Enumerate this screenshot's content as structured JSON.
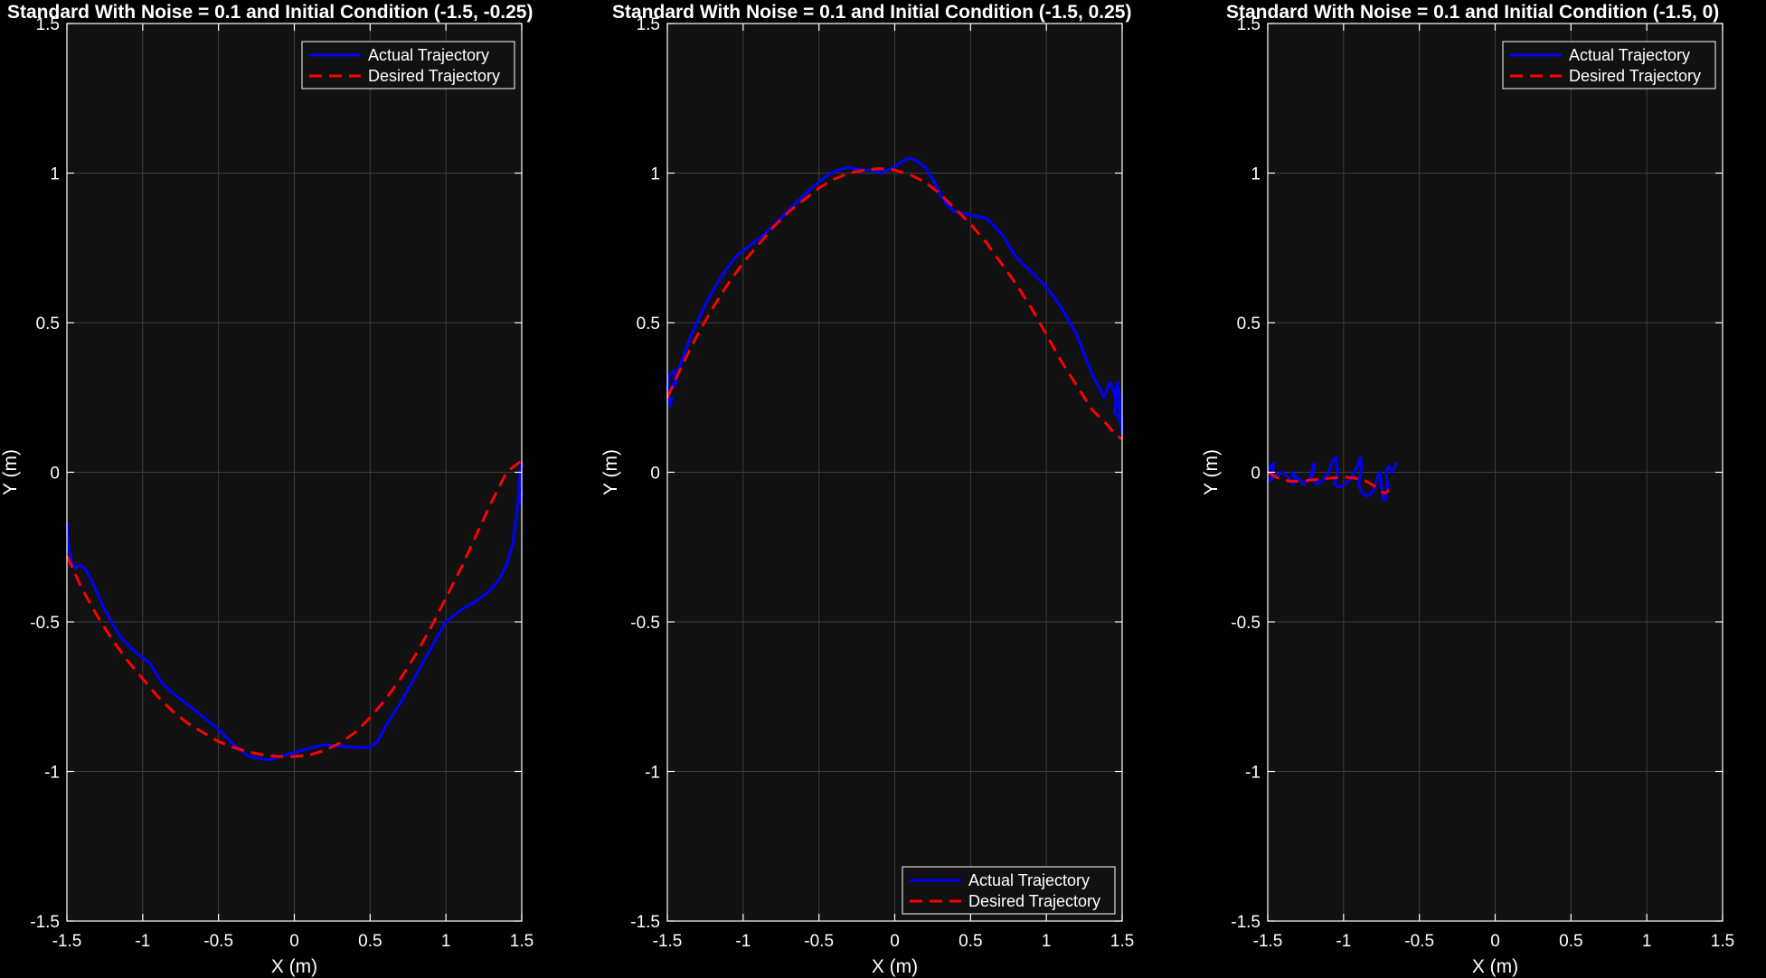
{
  "chart_data": [
    {
      "type": "line",
      "title": "Standard With Noise = 0.1 and Initial Condition (-1.5, -0.25)",
      "xlabel": "X (m)",
      "ylabel": "Y (m)",
      "xlim": [
        -1.5,
        1.5
      ],
      "ylim": [
        -1.5,
        1.5
      ],
      "xticks": [
        "-1.5",
        "-1",
        "-0.5",
        "0",
        "0.5",
        "1",
        "1.5"
      ],
      "yticks": [
        "-1.5",
        "-1",
        "-0.5",
        "0",
        "0.5",
        "1",
        "1.5"
      ],
      "grid": true,
      "background": "#111111",
      "legend_position": "top-right",
      "series": [
        {
          "name": "Actual Trajectory",
          "color": "#0000ff",
          "style": "solid",
          "x": [
            -1.5,
            -1.49,
            -1.47,
            -1.45,
            -1.42,
            -1.38,
            -1.32,
            -1.25,
            -1.15,
            -1.05,
            -0.95,
            -0.88,
            -0.8,
            -0.72,
            -0.62,
            -0.5,
            -0.4,
            -0.3,
            -0.2,
            -0.15,
            -0.1,
            -0.02,
            0.05,
            0.12,
            0.2,
            0.3,
            0.4,
            0.5,
            0.55,
            0.6,
            0.7,
            0.8,
            0.9,
            1.0,
            1.1,
            1.2,
            1.28,
            1.35,
            1.4,
            1.44,
            1.46,
            1.48,
            1.49,
            1.5,
            1.5,
            1.49,
            1.48,
            1.5,
            1.49
          ],
          "y": [
            -0.17,
            -0.25,
            -0.3,
            -0.32,
            -0.31,
            -0.32,
            -0.38,
            -0.46,
            -0.55,
            -0.6,
            -0.64,
            -0.7,
            -0.74,
            -0.77,
            -0.81,
            -0.86,
            -0.91,
            -0.95,
            -0.96,
            -0.96,
            -0.95,
            -0.94,
            -0.93,
            -0.92,
            -0.91,
            -0.915,
            -0.92,
            -0.92,
            -0.9,
            -0.85,
            -0.77,
            -0.68,
            -0.59,
            -0.5,
            -0.46,
            -0.43,
            -0.4,
            -0.36,
            -0.31,
            -0.24,
            -0.17,
            -0.08,
            -0.01,
            0.02,
            0.03,
            0.0,
            -0.05,
            -0.07,
            -0.1
          ]
        },
        {
          "name": "Desired Trajectory",
          "color": "#ff0000",
          "style": "dashed",
          "x": [
            -1.5,
            -1.4,
            -1.3,
            -1.2,
            -1.1,
            -1.0,
            -0.9,
            -0.8,
            -0.7,
            -0.6,
            -0.5,
            -0.4,
            -0.3,
            -0.2,
            -0.1,
            0.0,
            0.1,
            0.2,
            0.3,
            0.4,
            0.5,
            0.6,
            0.7,
            0.8,
            0.9,
            1.0,
            1.1,
            1.2,
            1.3,
            1.4,
            1.45,
            1.5
          ],
          "y": [
            -0.28,
            -0.39,
            -0.48,
            -0.56,
            -0.63,
            -0.69,
            -0.75,
            -0.8,
            -0.84,
            -0.87,
            -0.9,
            -0.92,
            -0.935,
            -0.945,
            -0.95,
            -0.95,
            -0.945,
            -0.93,
            -0.905,
            -0.87,
            -0.82,
            -0.76,
            -0.69,
            -0.61,
            -0.52,
            -0.42,
            -0.32,
            -0.21,
            -0.1,
            0.0,
            0.02,
            0.04
          ]
        }
      ]
    },
    {
      "type": "line",
      "title": "Standard With Noise = 0.1 and Initial Condition (-1.5, 0.25)",
      "xlabel": "X (m)",
      "ylabel": "Y (m)",
      "xlim": [
        -1.5,
        1.5
      ],
      "ylim": [
        -1.5,
        1.5
      ],
      "xticks": [
        "-1.5",
        "-1",
        "-0.5",
        "0",
        "0.5",
        "1",
        "1.5"
      ],
      "yticks": [
        "-1.5",
        "-1",
        "-0.5",
        "0",
        "0.5",
        "1",
        "1.5"
      ],
      "grid": true,
      "background": "#111111",
      "legend_position": "bottom-right",
      "series": [
        {
          "name": "Actual Trajectory",
          "color": "#0000ff",
          "style": "solid",
          "x": [
            -1.47,
            -1.48,
            -1.5,
            -1.49,
            -1.46,
            -1.44,
            -1.47,
            -1.42,
            -1.35,
            -1.25,
            -1.15,
            -1.05,
            -0.95,
            -0.85,
            -0.75,
            -0.65,
            -0.55,
            -0.45,
            -0.38,
            -0.3,
            -0.22,
            -0.15,
            -0.1,
            -0.05,
            0.0,
            0.05,
            0.1,
            0.15,
            0.2,
            0.25,
            0.3,
            0.35,
            0.4,
            0.5,
            0.6,
            0.7,
            0.8,
            0.9,
            1.0,
            1.1,
            1.2,
            1.3,
            1.38,
            1.42,
            1.44,
            1.46,
            1.47,
            1.49,
            1.5,
            1.48,
            1.45,
            1.46,
            1.48,
            1.49,
            1.5
          ],
          "y": [
            0.25,
            0.22,
            0.28,
            0.32,
            0.34,
            0.3,
            0.28,
            0.35,
            0.45,
            0.56,
            0.65,
            0.72,
            0.76,
            0.8,
            0.85,
            0.9,
            0.95,
            0.99,
            1.01,
            1.02,
            1.01,
            1.01,
            1.0,
            1.01,
            1.02,
            1.04,
            1.05,
            1.04,
            1.02,
            0.98,
            0.93,
            0.89,
            0.87,
            0.86,
            0.85,
            0.8,
            0.72,
            0.67,
            0.62,
            0.55,
            0.46,
            0.33,
            0.25,
            0.3,
            0.28,
            0.24,
            0.3,
            0.22,
            0.15,
            0.18,
            0.2,
            0.24,
            0.22,
            0.18,
            0.13
          ]
        },
        {
          "name": "Desired Trajectory",
          "color": "#ff0000",
          "style": "dashed",
          "x": [
            -1.5,
            -1.4,
            -1.3,
            -1.2,
            -1.1,
            -1.0,
            -0.9,
            -0.8,
            -0.7,
            -0.6,
            -0.5,
            -0.4,
            -0.3,
            -0.2,
            -0.1,
            0.0,
            0.1,
            0.2,
            0.3,
            0.4,
            0.5,
            0.6,
            0.7,
            0.8,
            0.9,
            1.0,
            1.1,
            1.2,
            1.3,
            1.4,
            1.45,
            1.5
          ],
          "y": [
            0.25,
            0.36,
            0.46,
            0.55,
            0.63,
            0.7,
            0.76,
            0.82,
            0.87,
            0.91,
            0.95,
            0.98,
            1.0,
            1.01,
            1.015,
            1.01,
            0.995,
            0.97,
            0.93,
            0.88,
            0.83,
            0.77,
            0.7,
            0.63,
            0.55,
            0.46,
            0.37,
            0.29,
            0.21,
            0.16,
            0.13,
            0.11
          ]
        }
      ]
    },
    {
      "type": "line",
      "title": "Standard With Noise = 0.1 and Initial Condition (-1.5, 0)",
      "xlabel": "X (m)",
      "ylabel": "Y (m)",
      "xlim": [
        -1.5,
        1.5
      ],
      "ylim": [
        -1.5,
        1.5
      ],
      "xticks": [
        "-1.5",
        "-1",
        "-0.5",
        "0",
        "0.5",
        "1",
        "1.5"
      ],
      "yticks": [
        "-1.5",
        "-1",
        "-0.5",
        "0",
        "0.5",
        "1",
        "1.5"
      ],
      "grid": true,
      "background": "#111111",
      "legend_position": "top-right",
      "series": [
        {
          "name": "Actual Trajectory",
          "color": "#0000ff",
          "style": "solid",
          "x": [
            -1.5,
            -1.48,
            -1.46,
            -1.47,
            -1.49,
            -1.45,
            -1.4,
            -1.36,
            -1.33,
            -1.32,
            -1.34,
            -1.3,
            -1.26,
            -1.22,
            -1.2,
            -1.19,
            -1.21,
            -1.18,
            -1.14,
            -1.1,
            -1.07,
            -1.05,
            -1.04,
            -1.06,
            -1.03,
            -0.99,
            -0.95,
            -0.91,
            -0.89,
            -0.88,
            -0.9,
            -0.88,
            -0.84,
            -0.8,
            -0.78,
            -0.76,
            -0.75,
            -0.74,
            -0.72,
            -0.71,
            -0.72,
            -0.7,
            -0.68,
            -0.66,
            -0.65
          ],
          "y": [
            0.0,
            0.02,
            0.03,
            -0.01,
            -0.03,
            -0.01,
            0.0,
            -0.02,
            -0.04,
            -0.02,
            0.0,
            -0.02,
            -0.04,
            -0.02,
            0.02,
            0.03,
            -0.02,
            -0.04,
            -0.03,
            0.0,
            0.04,
            0.05,
            0.0,
            -0.04,
            -0.05,
            -0.04,
            -0.02,
            0.02,
            0.05,
            0.02,
            -0.04,
            -0.07,
            -0.08,
            -0.06,
            -0.02,
            0.0,
            -0.05,
            -0.09,
            -0.09,
            -0.05,
            0.0,
            0.02,
            0.0,
            0.02,
            0.03
          ]
        },
        {
          "name": "Desired Trajectory",
          "color": "#ff0000",
          "style": "dashed",
          "x": [
            -1.5,
            -1.45,
            -1.4,
            -1.35,
            -1.3,
            -1.25,
            -1.2,
            -1.15,
            -1.1,
            -1.05,
            -1.0,
            -0.95,
            -0.9,
            -0.85,
            -0.8,
            -0.76,
            -0.73,
            -0.7
          ],
          "y": [
            0.0,
            -0.015,
            -0.025,
            -0.03,
            -0.03,
            -0.028,
            -0.025,
            -0.022,
            -0.02,
            -0.018,
            -0.016,
            -0.018,
            -0.022,
            -0.03,
            -0.045,
            -0.06,
            -0.07,
            -0.06
          ]
        }
      ]
    }
  ]
}
